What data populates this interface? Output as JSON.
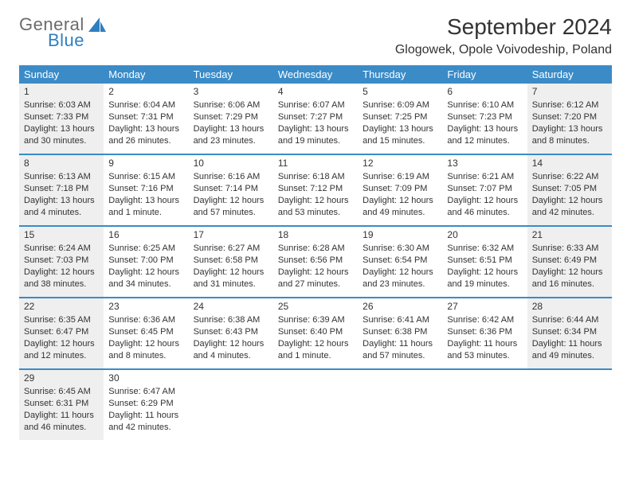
{
  "brand": {
    "top": "General",
    "bottom": "Blue"
  },
  "title": "September 2024",
  "location": "Glogowek, Opole Voivodeship, Poland",
  "colors": {
    "header_bg": "#3b8bc7",
    "header_text": "#ffffff",
    "divider": "#3b8bc7",
    "shaded_bg": "#efefef",
    "logo_gray": "#6b6b6b",
    "logo_blue": "#2f7fbf"
  },
  "weekdays": [
    "Sunday",
    "Monday",
    "Tuesday",
    "Wednesday",
    "Thursday",
    "Friday",
    "Saturday"
  ],
  "weeks": [
    [
      {
        "n": "1",
        "shaded": true,
        "sunrise": "Sunrise: 6:03 AM",
        "sunset": "Sunset: 7:33 PM",
        "day1": "Daylight: 13 hours",
        "day2": "and 30 minutes."
      },
      {
        "n": "2",
        "shaded": false,
        "sunrise": "Sunrise: 6:04 AM",
        "sunset": "Sunset: 7:31 PM",
        "day1": "Daylight: 13 hours",
        "day2": "and 26 minutes."
      },
      {
        "n": "3",
        "shaded": false,
        "sunrise": "Sunrise: 6:06 AM",
        "sunset": "Sunset: 7:29 PM",
        "day1": "Daylight: 13 hours",
        "day2": "and 23 minutes."
      },
      {
        "n": "4",
        "shaded": false,
        "sunrise": "Sunrise: 6:07 AM",
        "sunset": "Sunset: 7:27 PM",
        "day1": "Daylight: 13 hours",
        "day2": "and 19 minutes."
      },
      {
        "n": "5",
        "shaded": false,
        "sunrise": "Sunrise: 6:09 AM",
        "sunset": "Sunset: 7:25 PM",
        "day1": "Daylight: 13 hours",
        "day2": "and 15 minutes."
      },
      {
        "n": "6",
        "shaded": false,
        "sunrise": "Sunrise: 6:10 AM",
        "sunset": "Sunset: 7:23 PM",
        "day1": "Daylight: 13 hours",
        "day2": "and 12 minutes."
      },
      {
        "n": "7",
        "shaded": true,
        "sunrise": "Sunrise: 6:12 AM",
        "sunset": "Sunset: 7:20 PM",
        "day1": "Daylight: 13 hours",
        "day2": "and 8 minutes."
      }
    ],
    [
      {
        "n": "8",
        "shaded": true,
        "sunrise": "Sunrise: 6:13 AM",
        "sunset": "Sunset: 7:18 PM",
        "day1": "Daylight: 13 hours",
        "day2": "and 4 minutes."
      },
      {
        "n": "9",
        "shaded": false,
        "sunrise": "Sunrise: 6:15 AM",
        "sunset": "Sunset: 7:16 PM",
        "day1": "Daylight: 13 hours",
        "day2": "and 1 minute."
      },
      {
        "n": "10",
        "shaded": false,
        "sunrise": "Sunrise: 6:16 AM",
        "sunset": "Sunset: 7:14 PM",
        "day1": "Daylight: 12 hours",
        "day2": "and 57 minutes."
      },
      {
        "n": "11",
        "shaded": false,
        "sunrise": "Sunrise: 6:18 AM",
        "sunset": "Sunset: 7:12 PM",
        "day1": "Daylight: 12 hours",
        "day2": "and 53 minutes."
      },
      {
        "n": "12",
        "shaded": false,
        "sunrise": "Sunrise: 6:19 AM",
        "sunset": "Sunset: 7:09 PM",
        "day1": "Daylight: 12 hours",
        "day2": "and 49 minutes."
      },
      {
        "n": "13",
        "shaded": false,
        "sunrise": "Sunrise: 6:21 AM",
        "sunset": "Sunset: 7:07 PM",
        "day1": "Daylight: 12 hours",
        "day2": "and 46 minutes."
      },
      {
        "n": "14",
        "shaded": true,
        "sunrise": "Sunrise: 6:22 AM",
        "sunset": "Sunset: 7:05 PM",
        "day1": "Daylight: 12 hours",
        "day2": "and 42 minutes."
      }
    ],
    [
      {
        "n": "15",
        "shaded": true,
        "sunrise": "Sunrise: 6:24 AM",
        "sunset": "Sunset: 7:03 PM",
        "day1": "Daylight: 12 hours",
        "day2": "and 38 minutes."
      },
      {
        "n": "16",
        "shaded": false,
        "sunrise": "Sunrise: 6:25 AM",
        "sunset": "Sunset: 7:00 PM",
        "day1": "Daylight: 12 hours",
        "day2": "and 34 minutes."
      },
      {
        "n": "17",
        "shaded": false,
        "sunrise": "Sunrise: 6:27 AM",
        "sunset": "Sunset: 6:58 PM",
        "day1": "Daylight: 12 hours",
        "day2": "and 31 minutes."
      },
      {
        "n": "18",
        "shaded": false,
        "sunrise": "Sunrise: 6:28 AM",
        "sunset": "Sunset: 6:56 PM",
        "day1": "Daylight: 12 hours",
        "day2": "and 27 minutes."
      },
      {
        "n": "19",
        "shaded": false,
        "sunrise": "Sunrise: 6:30 AM",
        "sunset": "Sunset: 6:54 PM",
        "day1": "Daylight: 12 hours",
        "day2": "and 23 minutes."
      },
      {
        "n": "20",
        "shaded": false,
        "sunrise": "Sunrise: 6:32 AM",
        "sunset": "Sunset: 6:51 PM",
        "day1": "Daylight: 12 hours",
        "day2": "and 19 minutes."
      },
      {
        "n": "21",
        "shaded": true,
        "sunrise": "Sunrise: 6:33 AM",
        "sunset": "Sunset: 6:49 PM",
        "day1": "Daylight: 12 hours",
        "day2": "and 16 minutes."
      }
    ],
    [
      {
        "n": "22",
        "shaded": true,
        "sunrise": "Sunrise: 6:35 AM",
        "sunset": "Sunset: 6:47 PM",
        "day1": "Daylight: 12 hours",
        "day2": "and 12 minutes."
      },
      {
        "n": "23",
        "shaded": false,
        "sunrise": "Sunrise: 6:36 AM",
        "sunset": "Sunset: 6:45 PM",
        "day1": "Daylight: 12 hours",
        "day2": "and 8 minutes."
      },
      {
        "n": "24",
        "shaded": false,
        "sunrise": "Sunrise: 6:38 AM",
        "sunset": "Sunset: 6:43 PM",
        "day1": "Daylight: 12 hours",
        "day2": "and 4 minutes."
      },
      {
        "n": "25",
        "shaded": false,
        "sunrise": "Sunrise: 6:39 AM",
        "sunset": "Sunset: 6:40 PM",
        "day1": "Daylight: 12 hours",
        "day2": "and 1 minute."
      },
      {
        "n": "26",
        "shaded": false,
        "sunrise": "Sunrise: 6:41 AM",
        "sunset": "Sunset: 6:38 PM",
        "day1": "Daylight: 11 hours",
        "day2": "and 57 minutes."
      },
      {
        "n": "27",
        "shaded": false,
        "sunrise": "Sunrise: 6:42 AM",
        "sunset": "Sunset: 6:36 PM",
        "day1": "Daylight: 11 hours",
        "day2": "and 53 minutes."
      },
      {
        "n": "28",
        "shaded": true,
        "sunrise": "Sunrise: 6:44 AM",
        "sunset": "Sunset: 6:34 PM",
        "day1": "Daylight: 11 hours",
        "day2": "and 49 minutes."
      }
    ],
    [
      {
        "n": "29",
        "shaded": true,
        "sunrise": "Sunrise: 6:45 AM",
        "sunset": "Sunset: 6:31 PM",
        "day1": "Daylight: 11 hours",
        "day2": "and 46 minutes."
      },
      {
        "n": "30",
        "shaded": false,
        "sunrise": "Sunrise: 6:47 AM",
        "sunset": "Sunset: 6:29 PM",
        "day1": "Daylight: 11 hours",
        "day2": "and 42 minutes."
      },
      {
        "n": "",
        "shaded": false
      },
      {
        "n": "",
        "shaded": false
      },
      {
        "n": "",
        "shaded": false
      },
      {
        "n": "",
        "shaded": false
      },
      {
        "n": "",
        "shaded": false
      }
    ]
  ]
}
